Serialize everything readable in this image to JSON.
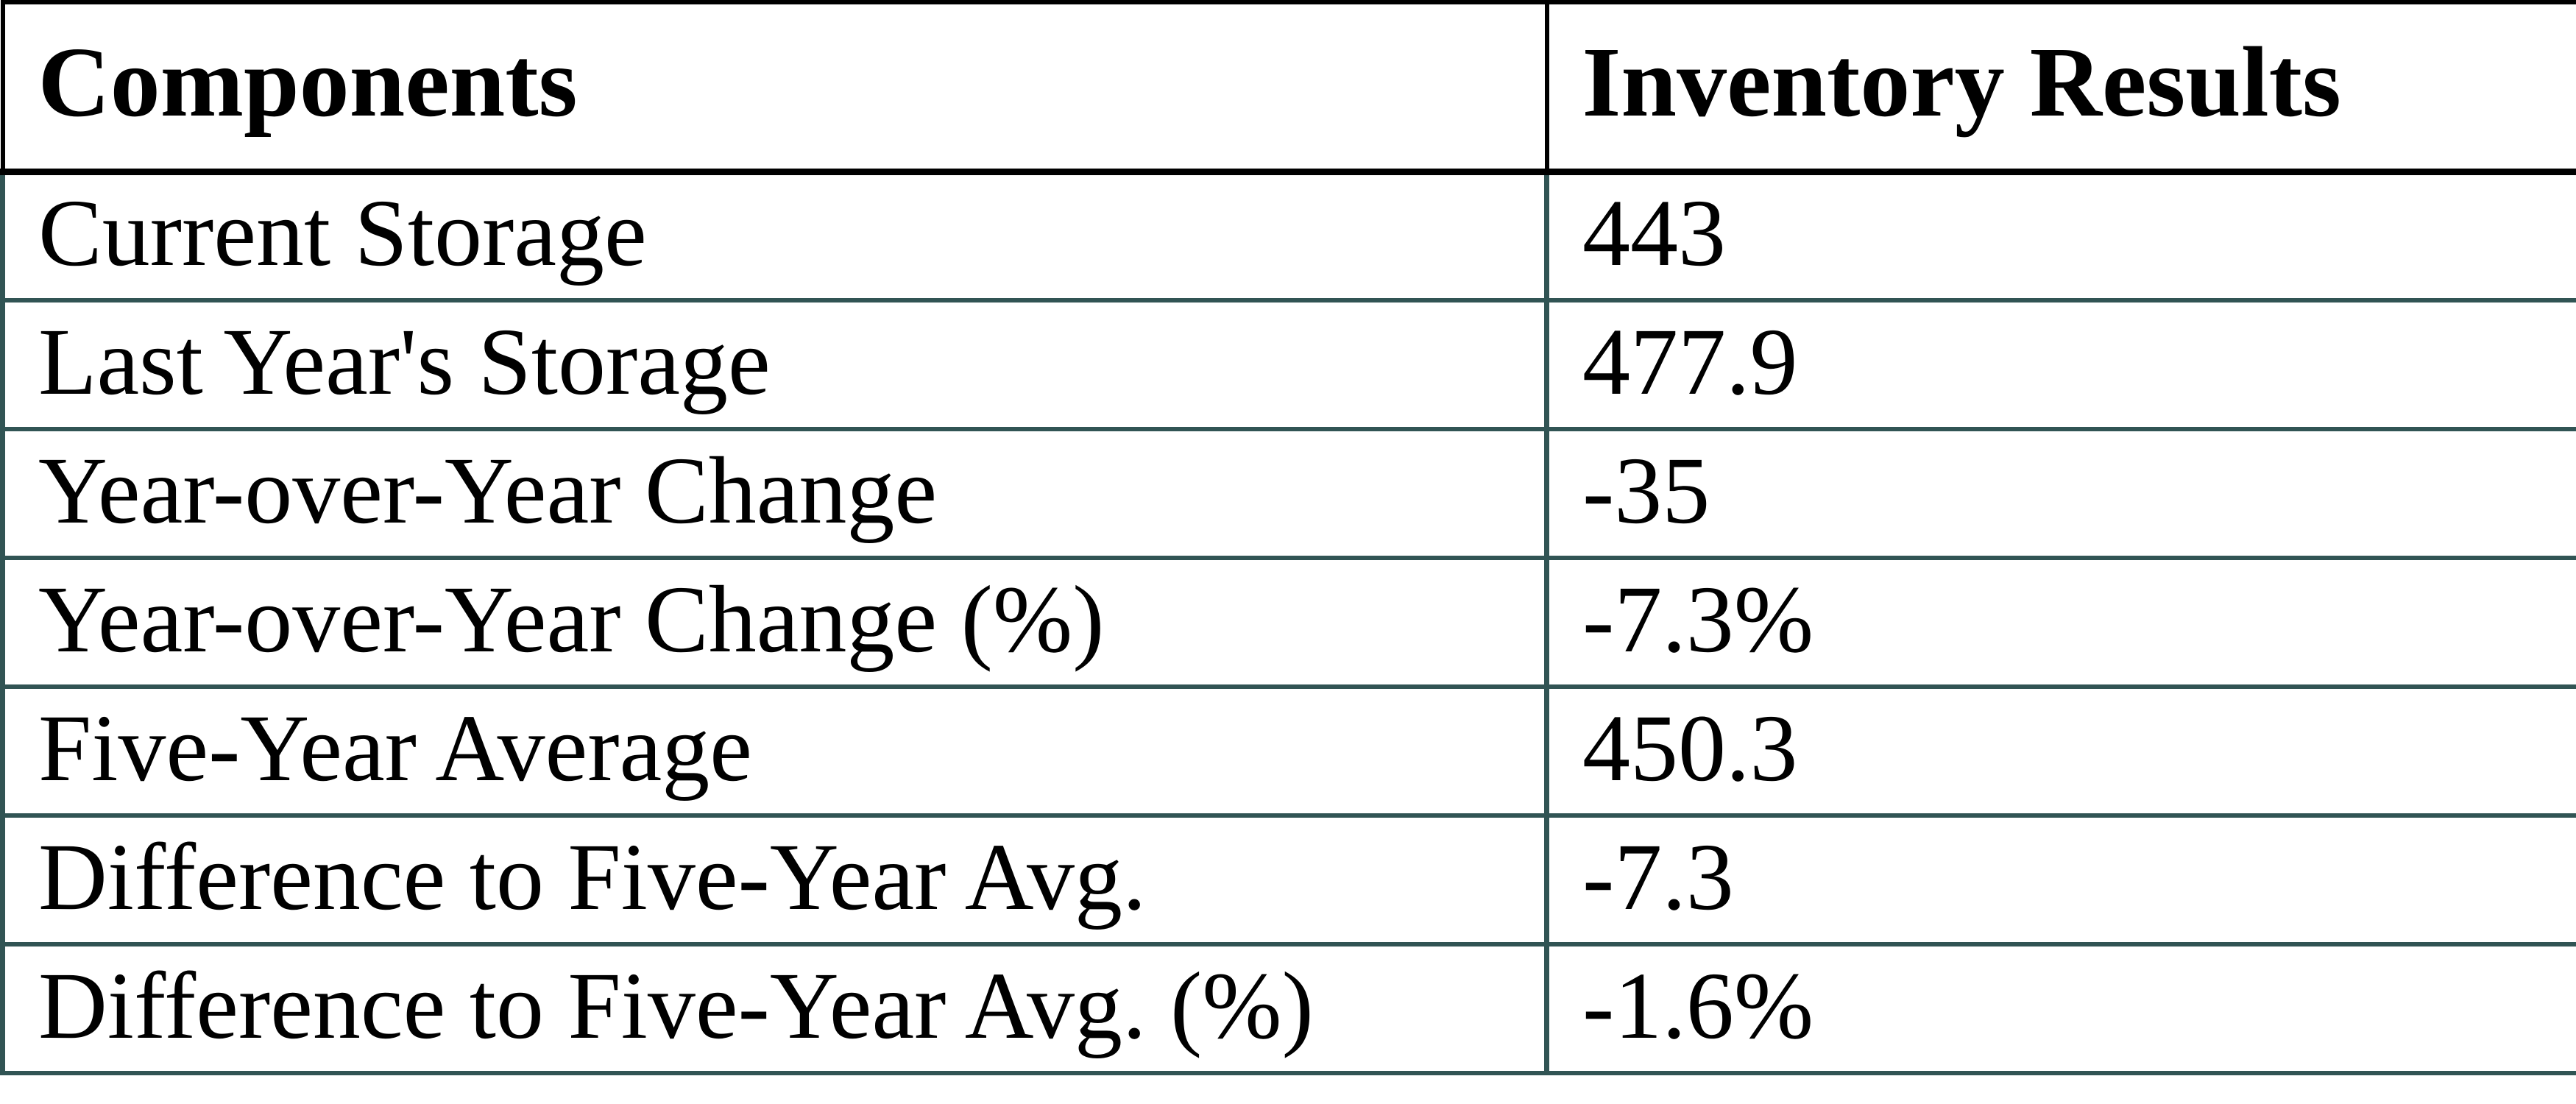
{
  "chart_data": {
    "type": "table",
    "title": "",
    "columns": [
      "Components",
      "Inventory Results"
    ],
    "rows": [
      [
        "Current Storage",
        "443"
      ],
      [
        "Last Year's Storage",
        "477.9"
      ],
      [
        "Year-over-Year Change",
        "-35"
      ],
      [
        "Year-over-Year Change (%)",
        "-7.3%"
      ],
      [
        "Five-Year Average",
        "450.3"
      ],
      [
        "Difference to Five-Year Avg.",
        "-7.3"
      ],
      [
        "Difference to Five-Year Avg. (%)",
        "-1.6%"
      ]
    ]
  },
  "table": {
    "columns": [
      "Components",
      "Inventory Results"
    ],
    "rows": [
      {
        "component": "Current Storage",
        "result": "443"
      },
      {
        "component": "Last Year's Storage",
        "result": "477.9"
      },
      {
        "component": "Year-over-Year Change",
        "result": "-35"
      },
      {
        "component": "Year-over-Year Change (%)",
        "result": "-7.3%"
      },
      {
        "component": "Five-Year Average",
        "result": "450.3"
      },
      {
        "component": "Difference to Five-Year Avg.",
        "result": "-7.3"
      },
      {
        "component": "Difference to Five-Year Avg. (%)",
        "result": "-1.6%"
      }
    ],
    "colors": {
      "header_border": "#000000",
      "body_border": "#315454",
      "text": "#000000",
      "background": "#ffffff"
    }
  }
}
